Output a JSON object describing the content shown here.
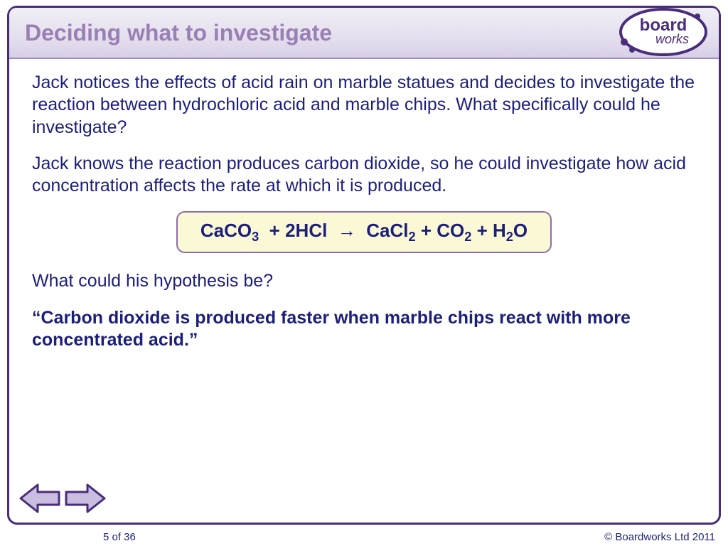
{
  "colors": {
    "frame_border": "#4a2d7a",
    "header_grad_top": "#f0eef5",
    "header_grad_bottom": "#d8d0e6",
    "title_color": "#9a7fb5",
    "body_text": "#1c1f7a",
    "equation_bg": "#fbf8d6",
    "equation_border": "#8b6fa8",
    "arrow_fill": "#c9bde0",
    "arrow_stroke": "#4a2d7a"
  },
  "header": {
    "title": "Deciding what to investigate",
    "logo_text_top": "board",
    "logo_text_bottom": "works"
  },
  "body": {
    "para1": "Jack notices the effects of acid rain on marble statues and decides to investigate the reaction between hydrochloric acid and marble chips. What specifically could he investigate?",
    "para2": "Jack knows the reaction produces carbon dioxide, so he could investigate how acid concentration affects the rate at which it is produced.",
    "equation_html": "CaCO<sub>3</sub>&nbsp; + 2HCl &nbsp;&#8594;&nbsp; CaCl<sub>2</sub> + CO<sub>2</sub> + H<sub>2</sub>O",
    "para3": "What could his hypothesis be?",
    "hypothesis": "“Carbon dioxide is produced faster when marble chips react with more concentrated acid.”"
  },
  "footer": {
    "page": "5 of 36",
    "copyright": "© Boardworks Ltd 2011"
  }
}
